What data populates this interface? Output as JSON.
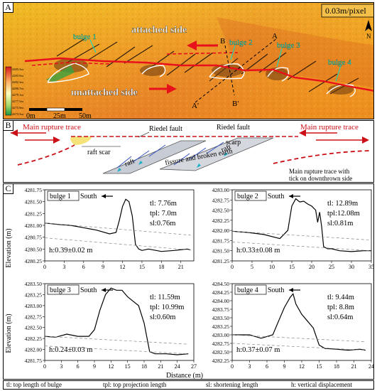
{
  "panelA": {
    "label": "A",
    "scale": "0.03m/pixel",
    "north": "N",
    "attached": "attached side",
    "unattached": "unattached side",
    "bulges": [
      "bulge 1",
      "bulge 2",
      "bulge 3",
      "bulge 4"
    ],
    "marks": {
      "A": "A",
      "A2": "A'",
      "B": "B",
      "B2": "B'"
    },
    "scalebar": [
      "0m",
      "25m",
      "50m"
    ],
    "colorbar": [
      "4285.5m",
      "4283.9m",
      "4282.3m",
      "4280.7m",
      "4279.1m",
      "4277.5m",
      "4275.9m",
      "4273.5m"
    ]
  },
  "panelB": {
    "label": "B",
    "mainLeft": "Main rupture trace",
    "mainRight": "Main rupture trace",
    "riedel1": "Riedel fault",
    "riedel2": "Riedel fault",
    "raftScar": "raft scar",
    "raft1": "raft",
    "raft2": "raft",
    "scarp": "scarp",
    "fissure": "fissure and broken earth",
    "legend1": "Main rupture trace with",
    "legend2": "tick on downthrown side"
  },
  "panelC": {
    "label": "C",
    "ylabel": "Elevation (m)",
    "xlabel": "Distance (m)",
    "south": "South"
  },
  "chart_data": [
    {
      "type": "line",
      "title": "bulge 1",
      "xlim": [
        0,
        23
      ],
      "ylim": [
        4280.25,
        4281.75
      ],
      "xticks": [
        0,
        3,
        6,
        9,
        12,
        15,
        18,
        21
      ],
      "yticks": [
        4280.25,
        4280.5,
        4280.75,
        4281.0,
        4281.25,
        4281.5,
        4281.75
      ],
      "ytick_labels": [
        "4280.25",
        "4280.50",
        "4280.75",
        "4281.00",
        "4281.25",
        "4281.50",
        "4281.75"
      ],
      "x": [
        0,
        2,
        4,
        6,
        8,
        10,
        11,
        11.5,
        12,
        12.5,
        13,
        13.5,
        14,
        14.5,
        15,
        16,
        18,
        20,
        22,
        22.5
      ],
      "y": [
        4281.05,
        4281.02,
        4281.0,
        4280.95,
        4280.9,
        4280.82,
        4280.85,
        4281.1,
        4281.4,
        4281.55,
        4281.5,
        4281.2,
        4280.6,
        4280.5,
        4280.47,
        4280.5,
        4280.45,
        4280.47,
        4280.5,
        4280.48
      ],
      "annotations": [
        "tl: 7.76m",
        "tpl: 7.0m",
        "sl:0.76m"
      ],
      "h": "h:0.39±0.02 m"
    },
    {
      "type": "line",
      "title": "bulge 2",
      "xlim": [
        0,
        35
      ],
      "ylim": [
        4281.25,
        4283.0
      ],
      "xticks": [
        0,
        5,
        10,
        15,
        20,
        25,
        30,
        35
      ],
      "yticks": [
        4281.25,
        4281.5,
        4281.75,
        4282.0,
        4282.25,
        4282.5,
        4282.75,
        4283.0
      ],
      "ytick_labels": [
        "4281.25",
        "4281.50",
        "4281.75",
        "4282.00",
        "4282.25",
        "4282.50",
        "4282.75",
        "4283.00"
      ],
      "x": [
        0,
        4,
        8,
        12,
        14,
        15,
        16,
        17,
        18,
        19,
        20,
        21,
        21.5,
        22,
        22.5,
        23,
        24,
        25,
        27,
        30,
        33,
        35
      ],
      "y": [
        4281.98,
        4281.95,
        4281.9,
        4281.8,
        4282.0,
        4282.6,
        4282.78,
        4282.7,
        4282.72,
        4282.65,
        4282.6,
        4282.5,
        4282.2,
        4282.45,
        4282.1,
        4281.6,
        4281.55,
        4281.55,
        4281.5,
        4281.48,
        4281.5,
        4281.5
      ],
      "annotations": [
        "tl: 12.89m",
        "tpl:12.08m",
        "sl:0.81m"
      ],
      "h": "h:0.33±0.08 m"
    },
    {
      "type": "line",
      "title": "bulge 3",
      "xlim": [
        0,
        27
      ],
      "ylim": [
        4281.75,
        4283.5
      ],
      "xticks": [
        0,
        3,
        6,
        9,
        12,
        15,
        18,
        21,
        24,
        27
      ],
      "yticks": [
        4281.75,
        4282.0,
        4282.25,
        4282.5,
        4282.75,
        4283.0,
        4283.25,
        4283.5
      ],
      "ytick_labels": [
        "4281.75",
        "4282.00",
        "4282.25",
        "4282.50",
        "4282.75",
        "4283.00",
        "4283.25",
        "4283.50"
      ],
      "x": [
        0,
        2,
        4,
        6,
        8,
        9,
        10,
        11,
        12,
        13,
        14,
        15,
        16,
        17,
        18,
        19,
        20,
        22,
        24,
        26
      ],
      "y": [
        4282.3,
        4282.28,
        4282.35,
        4282.3,
        4282.3,
        4282.45,
        4282.9,
        4283.25,
        4283.4,
        4283.35,
        4283.35,
        4283.2,
        4283.1,
        4283.0,
        4282.6,
        4281.95,
        4281.9,
        4281.9,
        4281.88,
        4281.9
      ],
      "annotations": [
        "tl: 11.59m",
        "tpl: 10.99m",
        "sl:0.60m"
      ],
      "h": "h:0.24±0.03 m"
    },
    {
      "type": "line",
      "title": "bulge 4",
      "xlim": [
        0,
        24
      ],
      "ylim": [
        4282.25,
        4284.5
      ],
      "xticks": [
        0,
        3,
        6,
        9,
        12,
        15,
        18,
        21,
        24
      ],
      "yticks": [
        4282.25,
        4282.5,
        4282.75,
        4283.0,
        4283.25,
        4283.5,
        4283.75,
        4284.0,
        4284.25,
        4284.5
      ],
      "ytick_labels": [
        "4282.25",
        "4282.50",
        "4282.75",
        "4283.00",
        "4283.25",
        "4283.50",
        "4283.75",
        "4284.00",
        "4284.25",
        "4284.50"
      ],
      "x": [
        0,
        3,
        5,
        7,
        8,
        9,
        10,
        10.5,
        11,
        12,
        13,
        14,
        15,
        16,
        18,
        20,
        22,
        23
      ],
      "y": [
        4283.0,
        4283.0,
        4282.9,
        4283.0,
        4283.4,
        4283.8,
        4284.1,
        4284.2,
        4283.9,
        4283.6,
        4283.4,
        4283.2,
        4282.7,
        4282.6,
        4282.58,
        4282.55,
        4282.58,
        4282.55
      ],
      "annotations": [
        "tl: 9.44m",
        "tpl: 8.8m",
        "sl:0.64m"
      ],
      "h": "h:0.37±0.07 m"
    }
  ],
  "footer": {
    "tl": "tl: top length of bulge",
    "tpl": "tpl: top projection length",
    "sl": "sl: shortening length",
    "h": "h: vertical displacement"
  }
}
